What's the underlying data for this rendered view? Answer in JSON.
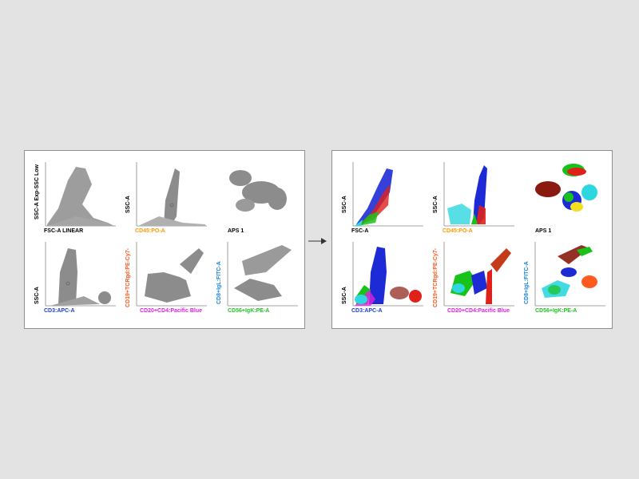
{
  "colors": {
    "background": "#e3e3e3",
    "panel": "#ffffff",
    "panel_border": "#8f8f8f",
    "gray_dots": "#8c8c8c",
    "label_black": "#111111",
    "label_orange": "#ff9900",
    "label_red_orange": "#ff5a1f",
    "label_magenta": "#e020e0",
    "label_blue": "#1a3fd0",
    "label_lightblue": "#1c86d8",
    "label_green": "#22c022"
  },
  "arrow_icon": "arrow-right-icon",
  "left_panel": {
    "plots": [
      {
        "x_label": "FSC-A LINEAR",
        "x_color": "#111111",
        "y_label": "SSC-A Exp-SSC Low",
        "y_color": "#111111"
      },
      {
        "x_label": "CD45:PO-A",
        "x_color": "#ff9900",
        "y_label": "SSC-A",
        "y_color": "#111111"
      },
      {
        "x_label": "APS 1",
        "x_color": "#111111",
        "y_label": "",
        "y_color": "#111111"
      },
      {
        "x_label": "CD3:APC-A",
        "x_color": "#1a3fd0",
        "y_label": "SSC-A",
        "y_color": "#111111"
      },
      {
        "x_label": "CD20+CD4:Pacific Blue",
        "x_color": "#e020e0",
        "y_label": "CD19+TCRgd:PE-Cy7-",
        "y_color": "#ff5a1f"
      },
      {
        "x_label": "CD56+IgK:PE-A",
        "x_color": "#22c022",
        "y_label": "CD8+IgL:FITC-A",
        "y_color": "#1c86d8"
      }
    ]
  },
  "right_panel": {
    "plots": [
      {
        "x_label": "FSC-A",
        "x_color": "#111111",
        "y_label": "SSC-A",
        "y_color": "#111111"
      },
      {
        "x_label": "CD45:PO-A",
        "x_color": "#ff9900",
        "y_label": "SSC-A",
        "y_color": "#111111"
      },
      {
        "x_label": "APS 1",
        "x_color": "#111111",
        "y_label": "",
        "y_color": "#111111"
      },
      {
        "x_label": "CD3:APC-A",
        "x_color": "#1a3fd0",
        "y_label": "SSC-A",
        "y_color": "#111111"
      },
      {
        "x_label": "CD20+CD4:Pacific Blue",
        "x_color": "#e020e0",
        "y_label": "CD19+TCRgd:PE-Cy7-",
        "y_color": "#ff5a1f"
      },
      {
        "x_label": "CD56+IgK:PE-A",
        "x_color": "#22c022",
        "y_label": "CD8+IgL:FITC-A",
        "y_color": "#1c86d8"
      }
    ]
  }
}
